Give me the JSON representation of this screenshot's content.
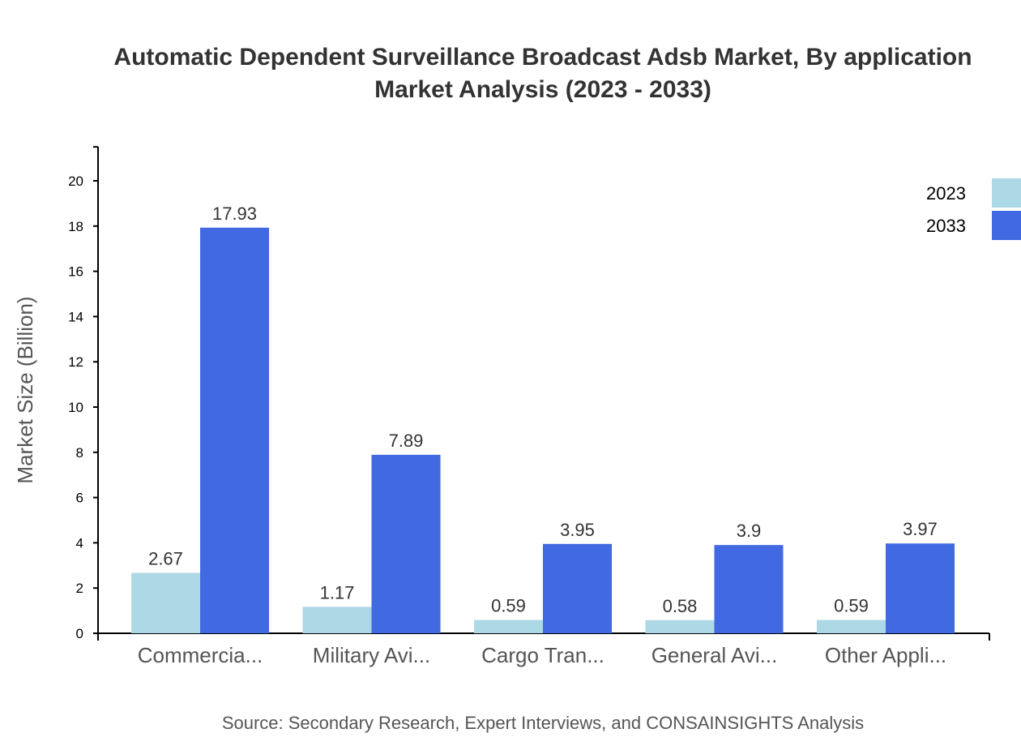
{
  "chart_data": {
    "type": "bar",
    "title": [
      "Automatic Dependent Surveillance Broadcast Adsb Market, By application",
      "Market Analysis (2023 - 2033)"
    ],
    "xlabel": "",
    "ylabel": "Market Size (Billion)",
    "ylim": [
      0,
      21.5
    ],
    "yticks": [
      0,
      2,
      4,
      6,
      8,
      10,
      12,
      14,
      16,
      18,
      20
    ],
    "categories": [
      "Commercia...",
      "Military Avi...",
      "Cargo Tran...",
      "General Avi...",
      "Other Appli..."
    ],
    "series": [
      {
        "name": "2023",
        "color": "#add8e6",
        "values": [
          2.67,
          1.17,
          0.59,
          0.58,
          0.59
        ]
      },
      {
        "name": "2033",
        "color": "#4169e1",
        "values": [
          17.93,
          7.89,
          3.95,
          3.9,
          3.97
        ]
      }
    ],
    "legend": "top-right",
    "grid": false,
    "source": "Source: Secondary Research, Expert Interviews, and CONSAINSIGHTS Analysis"
  }
}
